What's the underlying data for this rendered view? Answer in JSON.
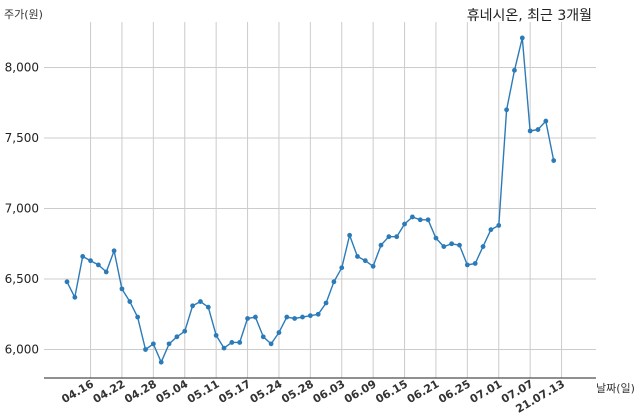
{
  "chart_data": {
    "type": "line",
    "title": "휴네시온, 최근 3개월",
    "ylabel": "주가(원)",
    "xlabel": "날짜(일)",
    "ylim": [
      5800,
      8350
    ],
    "yticks": [
      6000,
      6500,
      7000,
      7500,
      8000
    ],
    "ytick_labels": [
      "6,000",
      "6,500",
      "7,000",
      "7,500",
      "8,000"
    ],
    "xtick_labels": [
      {
        "index": 3,
        "label": "04.16"
      },
      {
        "index": 7,
        "label": "04.22"
      },
      {
        "index": 11,
        "label": "04.28"
      },
      {
        "index": 15,
        "label": "05.04"
      },
      {
        "index": 19,
        "label": "05.11"
      },
      {
        "index": 23,
        "label": "05.17"
      },
      {
        "index": 27,
        "label": "05.24"
      },
      {
        "index": 31,
        "label": "05.28"
      },
      {
        "index": 35,
        "label": "06.03"
      },
      {
        "index": 39,
        "label": "06.09"
      },
      {
        "index": 43,
        "label": "06.15"
      },
      {
        "index": 47,
        "label": "06.21"
      },
      {
        "index": 51,
        "label": "06.25"
      },
      {
        "index": 55,
        "label": "07.01"
      },
      {
        "index": 59,
        "label": "07.07"
      },
      {
        "index": 63,
        "label": "21.07.13"
      }
    ],
    "grid": true,
    "color": "#2b7bb9",
    "values": [
      6480,
      6370,
      6660,
      6630,
      6600,
      6550,
      6700,
      6430,
      6340,
      6230,
      6000,
      6040,
      5910,
      6040,
      6090,
      6130,
      6310,
      6340,
      6300,
      6100,
      6010,
      6050,
      6050,
      6220,
      6230,
      6090,
      6040,
      6120,
      6230,
      6220,
      6230,
      6240,
      6250,
      6330,
      6480,
      6580,
      6810,
      6660,
      6630,
      6590,
      6740,
      6800,
      6800,
      6890,
      6940,
      6920,
      6920,
      6790,
      6730,
      6750,
      6740,
      6600,
      6610,
      6730,
      6850,
      6880,
      7700,
      7980,
      8210,
      7550,
      7560,
      7620,
      7340
    ]
  }
}
